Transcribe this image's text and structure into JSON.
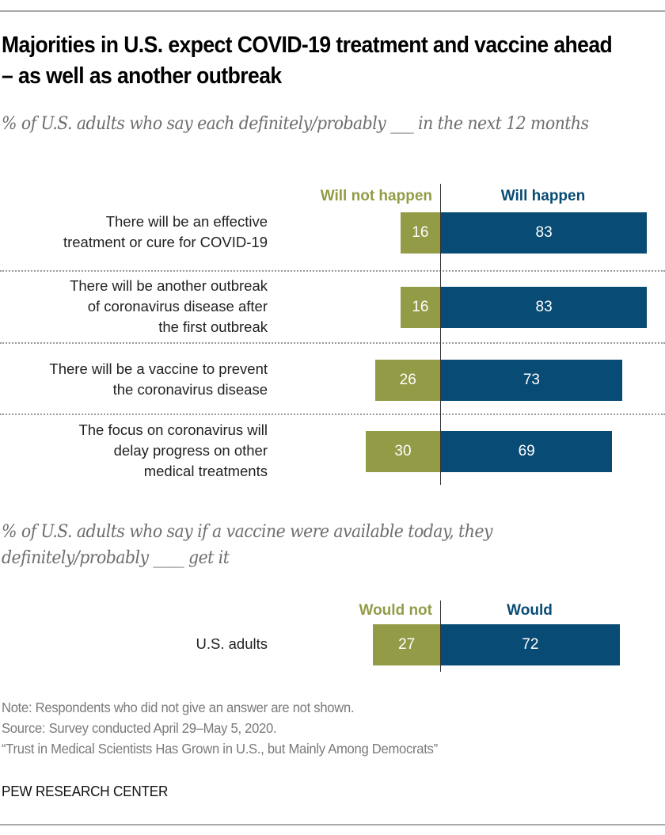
{
  "title": "Majorities in U.S. expect COVID-19 treatment and vaccine ahead – as well as another outbreak",
  "colors": {
    "negative": "#949b47",
    "positive": "#084b74"
  },
  "chart_data": [
    {
      "type": "bar",
      "orientation": "diverging-horizontal",
      "subtitle": "% of U.S. adults who say each definitely/probably ___ in the next 12 months",
      "legend": {
        "negative": "Will not happen",
        "positive": "Will happen"
      },
      "categories": [
        "There will be an effective treatment or cure for COVID-19",
        "There will be another outbreak of coronavirus disease after the first outbreak",
        "There will be a vaccine to prevent the coronavirus disease",
        "The focus on coronavirus will delay progress on other medical treatments"
      ],
      "category_lines": [
        [
          "There will be an effective",
          "treatment or cure for COVID-19"
        ],
        [
          "There will be another outbreak",
          "of coronavirus disease after",
          "the first outbreak"
        ],
        [
          "There will be a vaccine to prevent",
          "the coronavirus disease"
        ],
        [
          "The focus on coronavirus will",
          "delay progress on other",
          "medical treatments"
        ]
      ],
      "series": [
        {
          "name": "Will not happen",
          "values": [
            16,
            16,
            26,
            30
          ]
        },
        {
          "name": "Will happen",
          "values": [
            83,
            83,
            73,
            69
          ]
        }
      ],
      "unit": "%"
    },
    {
      "type": "bar",
      "orientation": "diverging-horizontal",
      "subtitle": "% of U.S. adults who say if a vaccine were available today, they definitely/probably ____ get it",
      "legend": {
        "negative": "Would not",
        "positive": "Would"
      },
      "categories": [
        "U.S. adults"
      ],
      "category_lines": [
        [
          "U.S. adults"
        ]
      ],
      "series": [
        {
          "name": "Would not",
          "values": [
            27
          ]
        },
        {
          "name": "Would",
          "values": [
            72
          ]
        }
      ],
      "unit": "%"
    }
  ],
  "notes": [
    "Note: Respondents who did not give an answer are not shown.",
    "Source: Survey conducted April 29–May 5, 2020.",
    "“Trust in Medical Scientists Has Grown in U.S., but Mainly Among Democrats”"
  ],
  "brand": "PEW RESEARCH CENTER"
}
